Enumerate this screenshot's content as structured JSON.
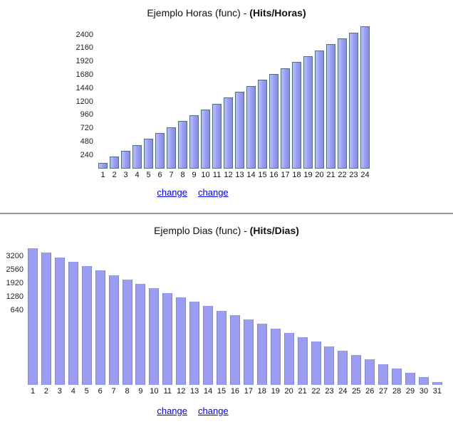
{
  "sections": [
    {
      "title_normal": "Ejemplo Horas (func) - ",
      "title_bold": "(Hits/Horas)",
      "links": [
        "change",
        "change"
      ]
    },
    {
      "title_normal": "Ejemplo Dias (func) - ",
      "title_bold": "(Hits/Dias)",
      "links": [
        "change",
        "change"
      ]
    }
  ],
  "chart_data": [
    {
      "type": "bar",
      "title": "Ejemplo Horas (func) - (Hits/Horas)",
      "categories": [
        "1",
        "2",
        "3",
        "4",
        "5",
        "6",
        "7",
        "8",
        "9",
        "10",
        "11",
        "12",
        "13",
        "14",
        "15",
        "16",
        "17",
        "18",
        "19",
        "20",
        "21",
        "22",
        "23",
        "24"
      ],
      "values": [
        106,
        213,
        319,
        425,
        531,
        638,
        744,
        850,
        956,
        1063,
        1169,
        1275,
        1381,
        1488,
        1594,
        1700,
        1806,
        1913,
        2019,
        2125,
        2231,
        2338,
        2444,
        2550
      ],
      "yticks": [
        240,
        480,
        720,
        960,
        1200,
        1440,
        1680,
        1920,
        2160,
        2400
      ],
      "xlabel": "",
      "ylabel": "",
      "ylim": [
        0,
        2550
      ],
      "grid": "off",
      "legend": "none",
      "bar_fill_color": "#9a9cf2",
      "bar_border_color": "#4f6d7d"
    },
    {
      "type": "bar",
      "title": "Ejemplo Dias (func) - (Hits/Dias)",
      "categories": [
        "1",
        "2",
        "3",
        "4",
        "5",
        "6",
        "7",
        "8",
        "9",
        "10",
        "11",
        "12",
        "13",
        "14",
        "15",
        "16",
        "17",
        "18",
        "19",
        "20",
        "21",
        "22",
        "23",
        "24",
        "25",
        "26",
        "27",
        "28",
        "29",
        "30",
        "31"
      ],
      "values": [
        3400,
        3289,
        3178,
        3068,
        2957,
        2846,
        2735,
        2625,
        2514,
        2403,
        2292,
        2182,
        2071,
        1960,
        1849,
        1739,
        1628,
        1517,
        1406,
        1296,
        1185,
        1074,
        963,
        853,
        742,
        631,
        520,
        410,
        299,
        188,
        77
      ],
      "yticks": [
        640,
        1280,
        1920,
        2560,
        3200
      ],
      "xlabel": "",
      "ylabel": "",
      "ylim": [
        0,
        3400
      ],
      "grid": "off",
      "legend": "none",
      "bar_fill_color": "#9b9df2",
      "bar_border_color": "none"
    }
  ]
}
